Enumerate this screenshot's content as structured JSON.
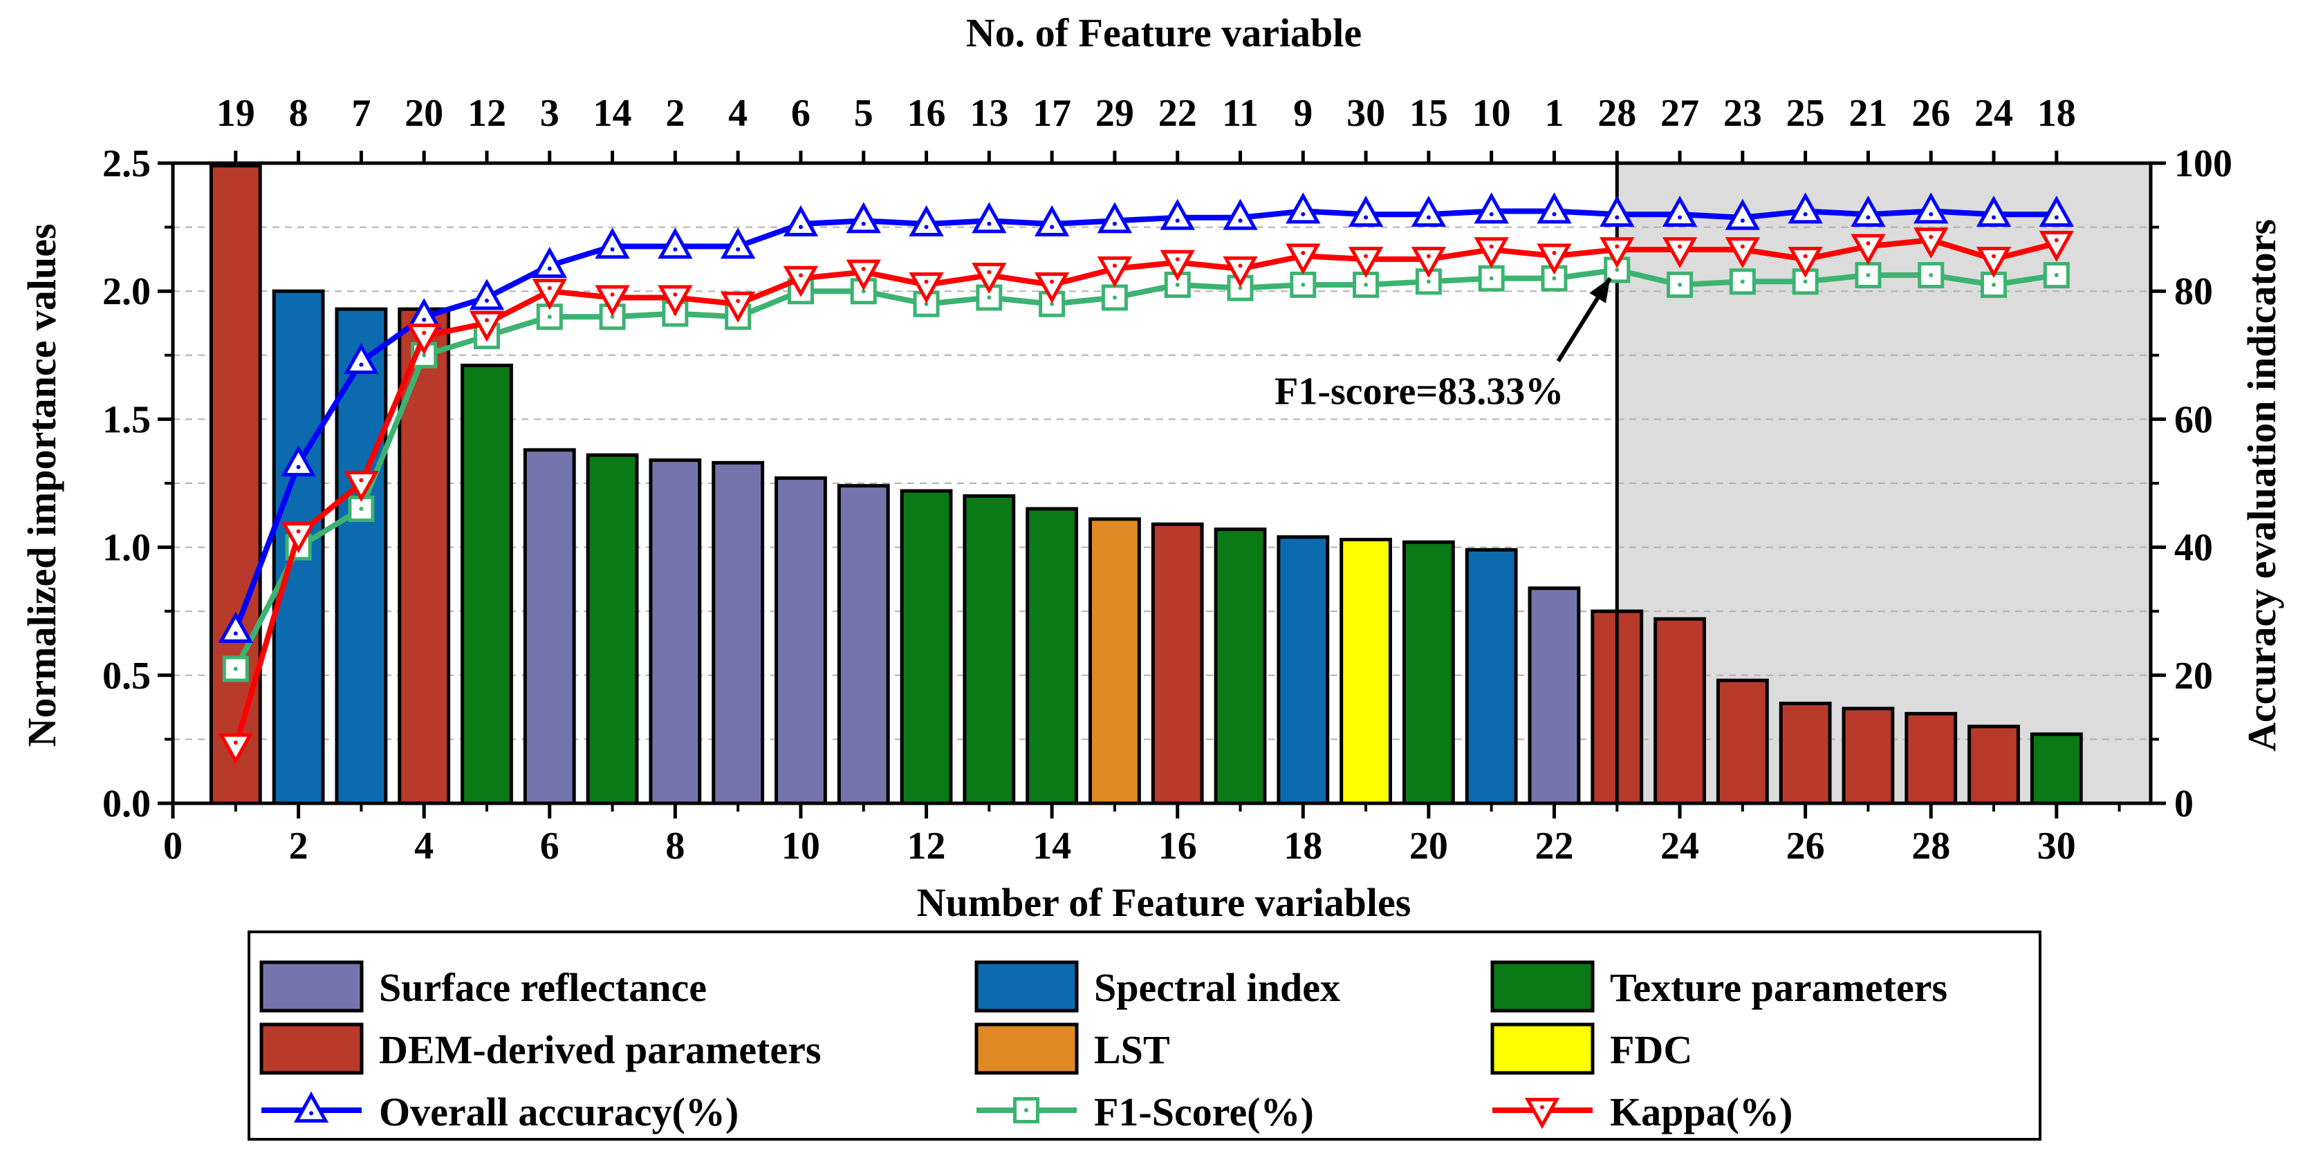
{
  "chart_data": {
    "type": "bar",
    "xlabel": "Number of Feature variables",
    "x2label": "No. of Feature variable",
    "ylabel": "Normalized importance values",
    "y2label": "Accuracy evaluation indicators",
    "xlim": [
      0,
      31.5
    ],
    "ylim": [
      0,
      2.5
    ],
    "y2lim": [
      0,
      100
    ],
    "xticks": [
      "0",
      "2",
      "4",
      "6",
      "8",
      "10",
      "12",
      "14",
      "16",
      "18",
      "20",
      "22",
      "24",
      "26",
      "28",
      "30"
    ],
    "yticks": [
      "0.0",
      "0.5",
      "1.0",
      "1.5",
      "2.0",
      "2.5"
    ],
    "y2ticks": [
      "0",
      "20",
      "40",
      "60",
      "80",
      "100"
    ],
    "top_labels": [
      "19",
      "8",
      "7",
      "20",
      "12",
      "3",
      "14",
      "2",
      "4",
      "6",
      "5",
      "16",
      "13",
      "17",
      "29",
      "22",
      "11",
      "9",
      "30",
      "15",
      "10",
      "1",
      "28",
      "27",
      "23",
      "25",
      "21",
      "26",
      "24",
      "18"
    ],
    "x": [
      1,
      2,
      3,
      4,
      5,
      6,
      7,
      8,
      9,
      10,
      11,
      12,
      13,
      14,
      15,
      16,
      17,
      18,
      19,
      20,
      21,
      22,
      23,
      24,
      25,
      26,
      27,
      28,
      29,
      30
    ],
    "importance": [
      2.49,
      2.0,
      1.93,
      1.93,
      1.71,
      1.38,
      1.36,
      1.34,
      1.33,
      1.27,
      1.24,
      1.22,
      1.2,
      1.15,
      1.11,
      1.09,
      1.07,
      1.04,
      1.03,
      1.02,
      0.99,
      0.84,
      0.75,
      0.72,
      0.48,
      0.39,
      0.37,
      0.35,
      0.3,
      0.27
    ],
    "categories_per_bar": [
      "dem",
      "spec",
      "spec",
      "dem",
      "tex",
      "sr",
      "tex",
      "sr",
      "sr",
      "sr",
      "sr",
      "tex",
      "tex",
      "tex",
      "lst",
      "dem",
      "tex",
      "spec",
      "fdc",
      "tex",
      "spec",
      "sr",
      "dem",
      "dem",
      "dem",
      "dem",
      "dem",
      "dem",
      "dem",
      "tex"
    ],
    "category_colors": {
      "sr": "#7575AD",
      "spec": "#0C6AAE",
      "tex": "#0A7A17",
      "dem": "#B83A2B",
      "lst": "#E08A25",
      "fdc": "#FFFF00"
    },
    "series": [
      {
        "name": "Overall accuracy(%)",
        "color": "#0000FF",
        "marker": "triangle-up",
        "values": [
          27,
          53,
          69,
          76,
          79,
          84,
          87,
          87,
          87,
          90.5,
          91,
          90.5,
          91,
          90.5,
          91,
          91.5,
          91.5,
          92.5,
          92,
          92,
          92.5,
          92.5,
          92,
          92,
          91.5,
          92.5,
          92,
          92.5,
          92,
          92
        ]
      },
      {
        "name": "F1-Score(%)",
        "color": "#3CB371",
        "marker": "square",
        "values": [
          21,
          40,
          46,
          70,
          73,
          76,
          76,
          76.5,
          76,
          80,
          80,
          78,
          79,
          78,
          79,
          81,
          80.5,
          81,
          81,
          81.5,
          82,
          82,
          83.33,
          81,
          81.5,
          81.5,
          82.5,
          82.5,
          81,
          82.5
        ]
      },
      {
        "name": "Kappa(%)",
        "color": "#FF0000",
        "marker": "triangle-down",
        "values": [
          9,
          42,
          50,
          73,
          75,
          80,
          79,
          79,
          78,
          82,
          83,
          81,
          82.5,
          81,
          83.5,
          84.5,
          83.5,
          85.5,
          85,
          85,
          86.5,
          85.5,
          86.5,
          86.5,
          86.5,
          85,
          87,
          88,
          85,
          87.5
        ]
      }
    ],
    "cutoff_x": 23,
    "shaded_from_x": 23,
    "annotation": {
      "text": "F1-score=83.33%",
      "x": 23,
      "y": 83.33
    },
    "legend": {
      "placement": "bottom",
      "items": [
        {
          "label": "Surface reflectance",
          "kind": "box",
          "color_key": "sr"
        },
        {
          "label": "Spectral index",
          "kind": "box",
          "color_key": "spec"
        },
        {
          "label": "Texture parameters",
          "kind": "box",
          "color_key": "tex"
        },
        {
          "label": "DEM-derived parameters",
          "kind": "box",
          "color_key": "dem"
        },
        {
          "label": "LST",
          "kind": "box",
          "color_key": "lst"
        },
        {
          "label": "FDC",
          "kind": "box",
          "color_key": "fdc"
        },
        {
          "label": "Overall accuracy(%)",
          "kind": "line",
          "series": 0
        },
        {
          "label": "F1-Score(%)",
          "kind": "line",
          "series": 1
        },
        {
          "label": "Kappa(%)",
          "kind": "line",
          "series": 2
        }
      ]
    },
    "grid": "horizontal-dashed"
  }
}
